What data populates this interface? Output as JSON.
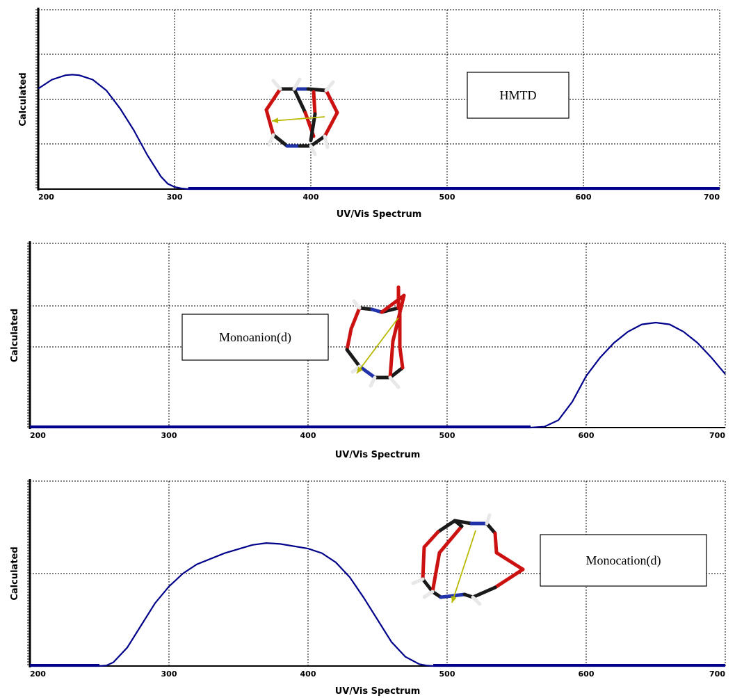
{
  "chart_data": [
    {
      "type": "line",
      "xlabel": "UV/Vis Spectrum",
      "ylabel": "Calculated",
      "xlim": [
        200,
        700
      ],
      "xticks": [
        200,
        300,
        400,
        500,
        600,
        700
      ],
      "ylim": [
        0,
        1
      ],
      "grid": true,
      "annotation": "HMTD",
      "series": [
        {
          "color": "#00008b",
          "x": [
            200,
            210,
            220,
            225,
            230,
            240,
            250,
            260,
            270,
            280,
            290,
            295,
            300,
            305,
            310,
            320,
            400,
            500,
            600,
            700
          ],
          "y": [
            0.56,
            0.61,
            0.635,
            0.638,
            0.635,
            0.61,
            0.55,
            0.45,
            0.33,
            0.19,
            0.07,
            0.03,
            0.012,
            0.004,
            0.0,
            0.0,
            0.0,
            0.0,
            0.0,
            0.0
          ]
        }
      ]
    },
    {
      "type": "line",
      "xlabel": "UV/Vis Spectrum",
      "ylabel": "Calculated",
      "xlim": [
        200,
        700
      ],
      "xticks": [
        200,
        300,
        400,
        500,
        600,
        700
      ],
      "ylim": [
        0,
        1
      ],
      "grid": true,
      "annotation": "Monoanion(d)",
      "series": [
        {
          "color": "#00008b",
          "x": [
            200,
            300,
            400,
            500,
            560,
            570,
            580,
            590,
            600,
            610,
            620,
            630,
            640,
            650,
            660,
            670,
            680,
            690,
            700
          ],
          "y": [
            0.0,
            0.0,
            0.0,
            0.0,
            0.0,
            0.005,
            0.04,
            0.14,
            0.28,
            0.38,
            0.46,
            0.52,
            0.56,
            0.57,
            0.56,
            0.52,
            0.46,
            0.38,
            0.29
          ]
        }
      ]
    },
    {
      "type": "line",
      "xlabel": "UV/Vis Spectrum",
      "ylabel": "Calculated",
      "xlim": [
        200,
        700
      ],
      "xticks": [
        200,
        300,
        400,
        500,
        600,
        700
      ],
      "ylim": [
        0,
        1
      ],
      "grid": true,
      "annotation": "Monocation(d)",
      "series": [
        {
          "color": "#00008b",
          "x": [
            200,
            250,
            255,
            260,
            270,
            280,
            290,
            300,
            310,
            320,
            340,
            360,
            370,
            380,
            400,
            410,
            420,
            430,
            440,
            450,
            460,
            470,
            480,
            485,
            490,
            500,
            600,
            700
          ],
          "y": [
            0.0,
            0.0,
            0.003,
            0.02,
            0.1,
            0.22,
            0.34,
            0.43,
            0.5,
            0.55,
            0.61,
            0.655,
            0.665,
            0.66,
            0.635,
            0.61,
            0.56,
            0.48,
            0.37,
            0.25,
            0.13,
            0.05,
            0.01,
            0.003,
            0.0,
            0.0,
            0.0,
            0.0
          ]
        }
      ]
    }
  ]
}
